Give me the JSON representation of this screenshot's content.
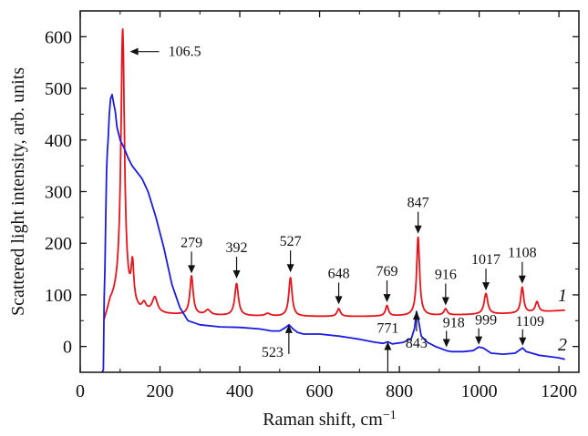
{
  "chart_data": {
    "type": "line",
    "xlabel": "Raman shift, cm",
    "xlabel_superscript": "−1",
    "ylabel": "Scattered light intensity, arb. units",
    "xlim": [
      0,
      1250
    ],
    "ylim": [
      -50,
      650
    ],
    "x_ticks": [
      0,
      200,
      400,
      600,
      800,
      1000,
      1200
    ],
    "y_ticks": [
      0,
      100,
      200,
      300,
      400,
      500,
      600
    ],
    "series": [
      {
        "name": "1",
        "color": "#e8141c",
        "baseline": [
          [
            60,
            45
          ],
          [
            75,
            80
          ],
          [
            85,
            85
          ],
          [
            95,
            90
          ],
          [
            110,
            80
          ],
          [
            150,
            65
          ],
          [
            200,
            62
          ],
          [
            300,
            60
          ],
          [
            500,
            58
          ],
          [
            700,
            58
          ],
          [
            900,
            60
          ],
          [
            1100,
            64
          ],
          [
            1215,
            70
          ]
        ],
        "peaks": [
          {
            "x": 106.5,
            "h": 530,
            "w": 5.5
          },
          {
            "x": 131,
            "h": 75,
            "w": 4
          },
          {
            "x": 160,
            "h": 15,
            "w": 6
          },
          {
            "x": 187,
            "h": 30,
            "w": 8
          },
          {
            "x": 279,
            "h": 75,
            "w": 5
          },
          {
            "x": 320,
            "h": 10,
            "w": 8
          },
          {
            "x": 392,
            "h": 62,
            "w": 5.5
          },
          {
            "x": 470,
            "h": 5,
            "w": 8
          },
          {
            "x": 527,
            "h": 75,
            "w": 5
          },
          {
            "x": 648,
            "h": 15,
            "w": 5
          },
          {
            "x": 769,
            "h": 20,
            "w": 4.5
          },
          {
            "x": 847,
            "h": 152,
            "w": 4.5
          },
          {
            "x": 916,
            "h": 12,
            "w": 5
          },
          {
            "x": 1017,
            "h": 40,
            "w": 5.5
          },
          {
            "x": 1108,
            "h": 50,
            "w": 4.5
          },
          {
            "x": 1145,
            "h": 20,
            "w": 5
          }
        ]
      },
      {
        "name": "2",
        "color": "#1c1ce0",
        "points": [
          [
            55,
            -50
          ],
          [
            58,
            -45
          ],
          [
            60,
            95
          ],
          [
            62,
            150
          ],
          [
            64,
            250
          ],
          [
            66,
            340
          ],
          [
            68,
            380
          ],
          [
            70,
            400
          ],
          [
            73,
            450
          ],
          [
            76,
            480
          ],
          [
            80,
            488
          ],
          [
            84,
            470
          ],
          [
            88,
            455
          ],
          [
            92,
            425
          ],
          [
            100,
            400
          ],
          [
            110,
            385
          ],
          [
            120,
            365
          ],
          [
            130,
            350
          ],
          [
            140,
            340
          ],
          [
            155,
            325
          ],
          [
            170,
            300
          ],
          [
            190,
            250
          ],
          [
            210,
            190
          ],
          [
            230,
            120
          ],
          [
            250,
            75
          ],
          [
            270,
            50
          ],
          [
            300,
            42
          ],
          [
            350,
            38
          ],
          [
            400,
            37
          ],
          [
            450,
            34
          ],
          [
            480,
            30
          ],
          [
            500,
            30
          ],
          [
            515,
            37
          ],
          [
            523,
            42
          ],
          [
            532,
            35
          ],
          [
            545,
            27
          ],
          [
            560,
            24
          ],
          [
            600,
            24
          ],
          [
            650,
            20
          ],
          [
            700,
            14
          ],
          [
            740,
            8
          ],
          [
            760,
            6
          ],
          [
            771,
            9
          ],
          [
            782,
            5
          ],
          [
            810,
            8
          ],
          [
            830,
            15
          ],
          [
            838,
            35
          ],
          [
            843,
            68
          ],
          [
            848,
            50
          ],
          [
            855,
            20
          ],
          [
            870,
            8
          ],
          [
            890,
            0
          ],
          [
            918,
            -8
          ],
          [
            930,
            -10
          ],
          [
            960,
            -10
          ],
          [
            985,
            -8
          ],
          [
            999,
            -1
          ],
          [
            1010,
            -3
          ],
          [
            1030,
            -13
          ],
          [
            1060,
            -15
          ],
          [
            1090,
            -13
          ],
          [
            1109,
            -3
          ],
          [
            1118,
            -10
          ],
          [
            1150,
            -17
          ],
          [
            1180,
            -20
          ],
          [
            1200,
            -22
          ],
          [
            1215,
            -25
          ]
        ]
      }
    ],
    "annotations_top": [
      {
        "label": "106.5",
        "x": 106.5,
        "y": 610,
        "arrow": "left"
      },
      {
        "label": "279",
        "x": 279,
        "y": 138
      },
      {
        "label": "392",
        "x": 392,
        "y": 128
      },
      {
        "label": "527",
        "x": 527,
        "y": 140
      },
      {
        "label": "648",
        "x": 648,
        "y": 78
      },
      {
        "label": "769",
        "x": 769,
        "y": 82
      },
      {
        "label": "847",
        "x": 847,
        "y": 215
      },
      {
        "label": "916",
        "x": 916,
        "y": 76
      },
      {
        "label": "1017",
        "x": 1017,
        "y": 105
      },
      {
        "label": "1108",
        "x": 1108,
        "y": 118
      }
    ],
    "annotations_blue": [
      {
        "label": "523",
        "x": 523,
        "y": 42,
        "dir": "up"
      },
      {
        "label": "771",
        "x": 771,
        "y": 9,
        "dir": "up"
      },
      {
        "label": "843",
        "x": 843,
        "y": 68,
        "dir": "up"
      },
      {
        "label": "918",
        "x": 918,
        "y": -5,
        "dir": "down"
      },
      {
        "label": "999",
        "x": 999,
        "y": 0,
        "dir": "down"
      },
      {
        "label": "1109",
        "x": 1109,
        "y": -2,
        "dir": "down"
      }
    ],
    "series_labels": [
      {
        "label": "1",
        "series": "1"
      },
      {
        "label": "2",
        "series": "2"
      }
    ]
  }
}
